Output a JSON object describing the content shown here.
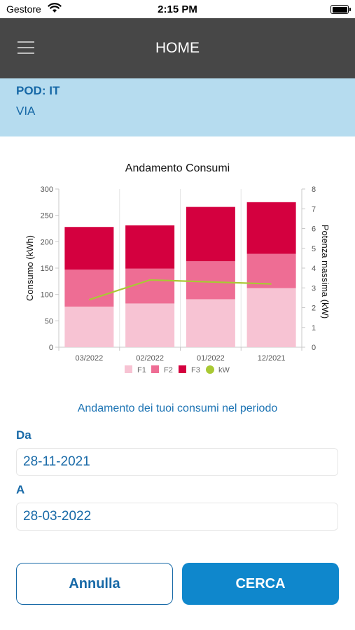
{
  "status_bar": {
    "carrier": "Gestore",
    "time": "2:15 PM"
  },
  "header": {
    "title": "HOME",
    "menu_icon": "hamburger-menu-icon"
  },
  "pod": {
    "code": "POD: IT",
    "address": "VIA"
  },
  "chart_data": {
    "type": "bar",
    "stacked": true,
    "title": "Andamento Consumi",
    "categories": [
      "03/2022",
      "02/2022",
      "01/2022",
      "12/2021"
    ],
    "series": [
      {
        "name": "F1",
        "values": [
          77,
          83,
          91,
          112
        ],
        "color": "#f7c3d3"
      },
      {
        "name": "F2",
        "values": [
          70,
          66,
          72,
          65
        ],
        "color": "#ee6d94"
      },
      {
        "name": "F3",
        "values": [
          81,
          82,
          103,
          98
        ],
        "color": "#d4003f"
      }
    ],
    "line_series": {
      "name": "kW",
      "values": [
        2.4,
        3.4,
        3.3,
        3.2
      ],
      "color": "#a9c934",
      "axis": "right"
    },
    "ylabel": "Consumo (kWh)",
    "ylim": [
      0,
      300
    ],
    "yticks": [
      0,
      50,
      100,
      150,
      200,
      250,
      300
    ],
    "y2label": "Potenza massima (kW)",
    "y2lim": [
      0,
      8
    ],
    "y2ticks": [
      0,
      1,
      2,
      3,
      4,
      5,
      6,
      7,
      8
    ],
    "legend_position": "bottom",
    "grid": true
  },
  "form": {
    "subtitle": "Andamento dei tuoi consumi nel periodo",
    "from_label": "Da",
    "from_value": "28-11-2021",
    "to_label": "A",
    "to_value": "28-03-2022"
  },
  "actions": {
    "cancel_label": "Annulla",
    "search_label": "CERCA"
  }
}
